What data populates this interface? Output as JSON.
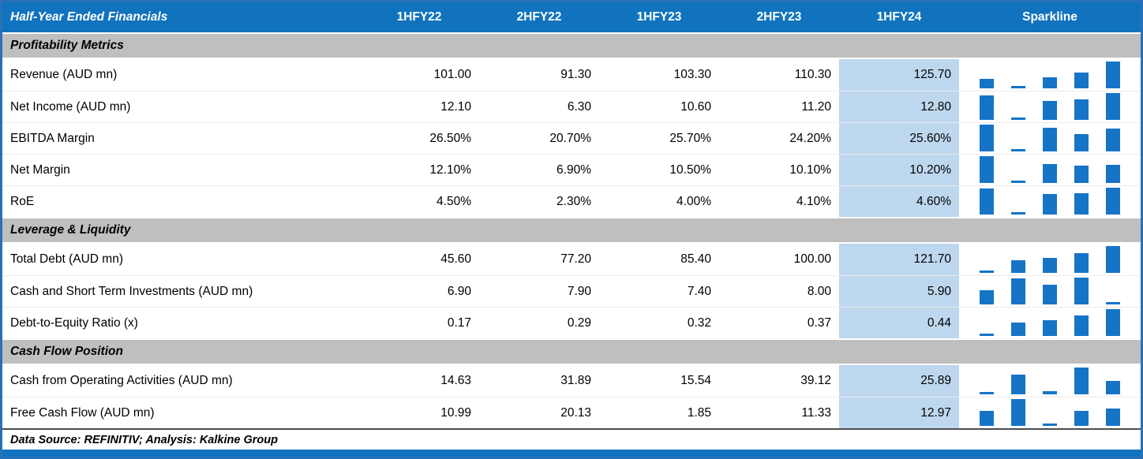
{
  "header": {
    "title": "Half-Year Ended Financials",
    "sparkline_label": "Sparkline"
  },
  "chart_data": {
    "type": "table",
    "columns": [
      "1HFY22",
      "2HFY22",
      "1HFY23",
      "2HFY23",
      "1HFY24"
    ],
    "highlight_column": "1HFY24",
    "sparkline_type": "bar",
    "sections": [
      {
        "label": "Profitability Metrics",
        "rows": [
          {
            "label": "Revenue (AUD mn)",
            "format": "number",
            "values": [
              101.0,
              91.3,
              103.3,
              110.3,
              125.7
            ]
          },
          {
            "label": "Net Income (AUD mn)",
            "format": "number",
            "values": [
              12.1,
              6.3,
              10.6,
              11.2,
              12.8
            ]
          },
          {
            "label": "EBITDA Margin",
            "format": "percent",
            "values": [
              26.5,
              20.7,
              25.7,
              24.2,
              25.6
            ]
          },
          {
            "label": "Net Margin",
            "format": "percent",
            "values": [
              12.1,
              6.9,
              10.5,
              10.1,
              10.2
            ]
          },
          {
            "label": "RoE",
            "format": "percent",
            "values": [
              4.5,
              2.3,
              4.0,
              4.1,
              4.6
            ]
          }
        ]
      },
      {
        "label": "Leverage & Liquidity",
        "rows": [
          {
            "label": "Total Debt (AUD mn)",
            "format": "number",
            "values": [
              45.6,
              77.2,
              85.4,
              100.0,
              121.7
            ]
          },
          {
            "label": "Cash and Short Term Investments (AUD mn)",
            "format": "number",
            "values": [
              6.9,
              7.9,
              7.4,
              8.0,
              5.9
            ]
          },
          {
            "label": "Debt-to-Equity Ratio (x)",
            "format": "number",
            "values": [
              0.17,
              0.29,
              0.32,
              0.37,
              0.44
            ]
          }
        ]
      },
      {
        "label": "Cash Flow Position",
        "rows": [
          {
            "label": "Cash from Operating Activities (AUD mn)",
            "format": "number",
            "values": [
              14.63,
              31.89,
              15.54,
              39.12,
              25.89
            ]
          },
          {
            "label": "Free Cash Flow (AUD mn)",
            "format": "number",
            "values": [
              10.99,
              20.13,
              1.85,
              11.33,
              12.97
            ]
          }
        ]
      }
    ]
  },
  "footer": {
    "note": "Data Source: REFINITIV; Analysis: Kalkine Group"
  },
  "colors": {
    "header_blue": "#1173BE",
    "border_blue": "#2A70B8",
    "section_gray": "#BFBFBF",
    "column_highlight": "#BDD7EE",
    "sparkline_bar": "#1674C7",
    "accent_strip": "#1173BE"
  }
}
